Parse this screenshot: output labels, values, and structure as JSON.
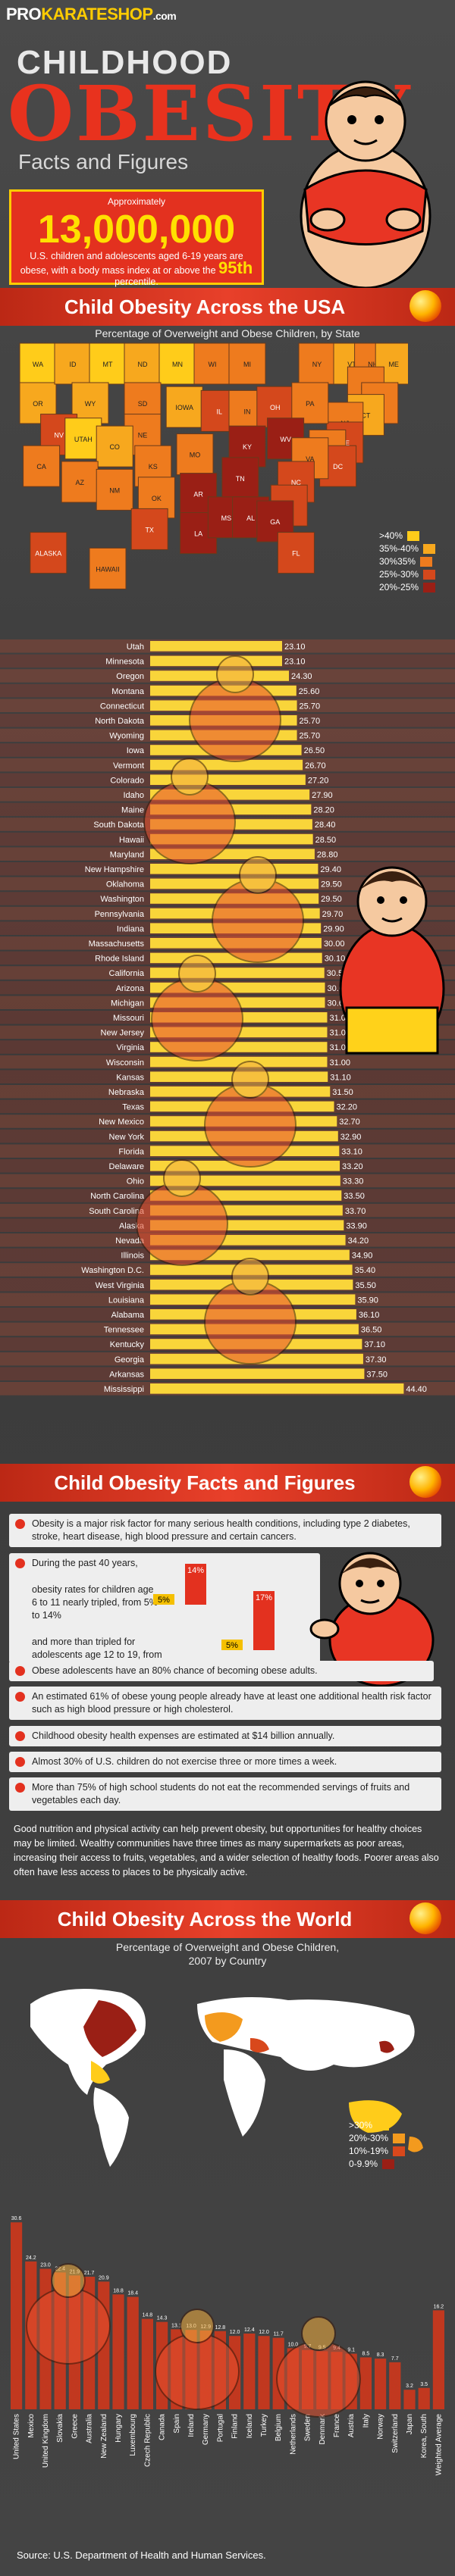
{
  "header": {
    "logo_pro": "PRO",
    "logo_mid": "KARATESHOP",
    "logo_dom": ".com",
    "title_line1": "CHILDHOOD",
    "title_line2": "OBESITY",
    "title_line3": "Facts and Figures"
  },
  "intro_stat": {
    "approx_label": "Approximately",
    "number": "13,000,000",
    "description_before": "U.S. children and adolescents aged 6-19 years are obese, with a body mass index at or above the",
    "percentile": "95th",
    "description_after": "percentile."
  },
  "us_section": {
    "heading": "Child Obesity Across the USA",
    "subtitle": "Percentage of Overweight and Obese Children, by State",
    "legend": [
      {
        "label": ">40%",
        "color": "#ffcc1a"
      },
      {
        "label": "35%-40%",
        "color": "#f7a81e"
      },
      {
        "label": "30%35%",
        "color": "#ee7b1e"
      },
      {
        "label": "25%-30%",
        "color": "#d4481c"
      },
      {
        "label": "20%-25%",
        "color": "#9a1f15"
      }
    ],
    "map_labels": [
      "WA",
      "OR",
      "ID",
      "MT",
      "ND",
      "MN",
      "WI",
      "MI",
      "NY",
      "VT",
      "NH",
      "ME",
      "MA",
      "RI",
      "CT",
      "NJ",
      "DE",
      "MD",
      "DC",
      "WY",
      "SD",
      "NE",
      "IOWA",
      "IL",
      "IN",
      "OH",
      "PA",
      "NV",
      "UTAH",
      "CO",
      "KS",
      "MO",
      "KY",
      "WV",
      "VA",
      "CA",
      "AZ",
      "NM",
      "OK",
      "AR",
      "TN",
      "NC",
      "SC",
      "TX",
      "LA",
      "MS",
      "AL",
      "GA",
      "FL",
      "ALASKA",
      "HAWAII"
    ]
  },
  "chart_data": [
    {
      "type": "bar",
      "title": "",
      "categories": [
        "Utah",
        "Minnesota",
        "Oregon",
        "Montana",
        "Connecticut",
        "North Dakota",
        "Wyoming",
        "Iowa",
        "Vermont",
        "Colorado",
        "Idaho",
        "Maine",
        "South Dakota",
        "Hawaii",
        "Maryland",
        "New Hampshire",
        "Oklahoma",
        "Washington",
        "Pennsylvania",
        "Indiana",
        "Massachusetts",
        "Rhode Island",
        "California",
        "Arizona",
        "Michigan",
        "Missouri",
        "New Jersey",
        "Virginia",
        "Wisconsin",
        "Kansas",
        "Nebraska",
        "Texas",
        "New Mexico",
        "New York",
        "Florida",
        "Delaware",
        "Ohio",
        "North Carolina",
        "South Carolina",
        "Alaska",
        "Nevada",
        "Illinois",
        "Washington D.C.",
        "West Virginia",
        "Louisiana",
        "Alabama",
        "Tennessee",
        "Kentucky",
        "Georgia",
        "Arkansas",
        "Mississippi"
      ],
      "values": [
        23.1,
        23.1,
        24.3,
        25.6,
        25.7,
        25.7,
        25.7,
        26.5,
        26.7,
        27.2,
        27.9,
        28.2,
        28.4,
        28.5,
        28.8,
        29.4,
        29.5,
        29.5,
        29.7,
        29.9,
        30.0,
        30.1,
        30.5,
        30.6,
        30.6,
        31.0,
        31.0,
        31.0,
        31.0,
        31.1,
        31.5,
        32.2,
        32.7,
        32.9,
        33.1,
        33.2,
        33.3,
        33.5,
        33.7,
        33.9,
        34.2,
        34.9,
        35.4,
        35.5,
        35.9,
        36.1,
        36.5,
        37.1,
        37.3,
        37.5,
        44.4
      ],
      "value_labels": [
        "23.10",
        "23.10",
        "24.30",
        "25.60",
        "25.70",
        "25.70",
        "25.70",
        "26.50",
        "26.70",
        "27.20",
        "27.90",
        "28.20",
        "28.40",
        "28.50",
        "28.80",
        "29.40",
        "29.50",
        "29.50",
        "29.70",
        "29.90",
        "30.00",
        "30.10",
        "30.50",
        "30.60",
        "30.60",
        "31.00",
        "31.00",
        "31.00",
        "31.00",
        "31.10",
        "31.50",
        "32.20",
        "32.70",
        "32.90",
        "33.10",
        "33.20",
        "33.30",
        "33.50",
        "33.70",
        "33.90",
        "34.20",
        "34.90",
        "35.40",
        "35.50",
        "35.90",
        "36.10",
        "36.50",
        "37.10",
        "37.30",
        "37.50",
        "44.40"
      ],
      "orientation": "horizontal",
      "grid": false
    },
    {
      "type": "bar",
      "title": "",
      "categories": [
        "United States",
        "Mexico",
        "United Kingdom",
        "Slovakia",
        "Greece",
        "Australia",
        "New Zealand",
        "Hungary",
        "Luxembourg",
        "Czech Republic",
        "Canada",
        "Spain",
        "Ireland",
        "Germany",
        "Portugal",
        "Finland",
        "Iceland",
        "Turkey",
        "Belgium",
        "Netherlands",
        "Sweden",
        "Denmark",
        "France",
        "Austria",
        "Italy",
        "Norway",
        "Switzerland",
        "Japan",
        "Korea, South",
        "Weighted Average"
      ],
      "values": [
        30.6,
        24.2,
        23.0,
        22.4,
        21.9,
        21.7,
        20.9,
        18.8,
        18.4,
        14.8,
        14.3,
        13.1,
        13.0,
        12.9,
        12.8,
        12.0,
        12.4,
        12.0,
        11.7,
        10.0,
        9.7,
        9.5,
        9.4,
        9.1,
        8.5,
        8.3,
        7.7,
        3.2,
        3.5,
        16.2
      ],
      "value_labels": [
        "30.6",
        "24.2",
        "23.0",
        "22.4",
        "21.9",
        "21.7",
        "20.9",
        "18.8",
        "18.4",
        "14.8",
        "14.3",
        "13.1",
        "13.0",
        "12.9",
        "12.8",
        "12.0",
        "12.4",
        "12.0",
        "11.7",
        "10.0",
        "9.7",
        "9.5",
        "9.4",
        "9.1",
        "8.5",
        "8.3",
        "7.7",
        "3.2",
        "3.5",
        "16.2"
      ],
      "orientation": "vertical",
      "grid": false
    }
  ],
  "facts_section": {
    "heading": "Child Obesity Facts and Figures",
    "fact1": "Obesity is a major risk factor for many serious health conditions, including type 2 diabetes, stroke, heart disease, high blood pressure and certain cancers.",
    "fact2_intro": "During the past 40 years,",
    "fact2_a": "obesity rates for children age 6 to 11 nearly tripled, from 5% to 14%",
    "fact2_b": "and more than tripled for adolescents age 12 to 19, from 5% to 17.%.",
    "mini_a_from": "5%",
    "mini_a_to": "14%",
    "mini_b_from": "5%",
    "mini_b_to": "17%",
    "fact3": "Obese adolescents have an 80% chance of becoming obese adults.",
    "fact4": "An estimated 61% of obese young people already have at least one additional health risk factor such as high blood pressure or high cholesterol.",
    "fact5": "Childhood obesity health expenses are estimated at $14 billion annually.",
    "fact6": "Almost 30% of U.S. children do not exercise three or more times a week.",
    "fact7": "More than 75% of high school students do not eat the recommended servings of fruits and vegetables each day.",
    "paragraph": "Good nutrition and physical activity can help prevent obesity, but opportunities for healthy choices may be limited. Wealthy communities have three times as many supermarkets as poor areas, increasing their access to fruits, vegetables, and a wider selection of healthy foods. Poorer areas also often have less access to places to be physically active."
  },
  "world_section": {
    "heading": "Child Obesity Across the World",
    "subtitle_line1": "Percentage of Overweight and Obese Children,",
    "subtitle_line2": "2007 by Country",
    "legend": [
      {
        "label": ">30%",
        "color": "#ffcc1a"
      },
      {
        "label": "20%-30%",
        "color": "#f39a1e"
      },
      {
        "label": "10%-19%",
        "color": "#d8481c"
      },
      {
        "label": "0-9.9%",
        "color": "#9a1f15"
      }
    ]
  },
  "footer": {
    "source": "Source: U.S. Department of Health and Human Services."
  }
}
